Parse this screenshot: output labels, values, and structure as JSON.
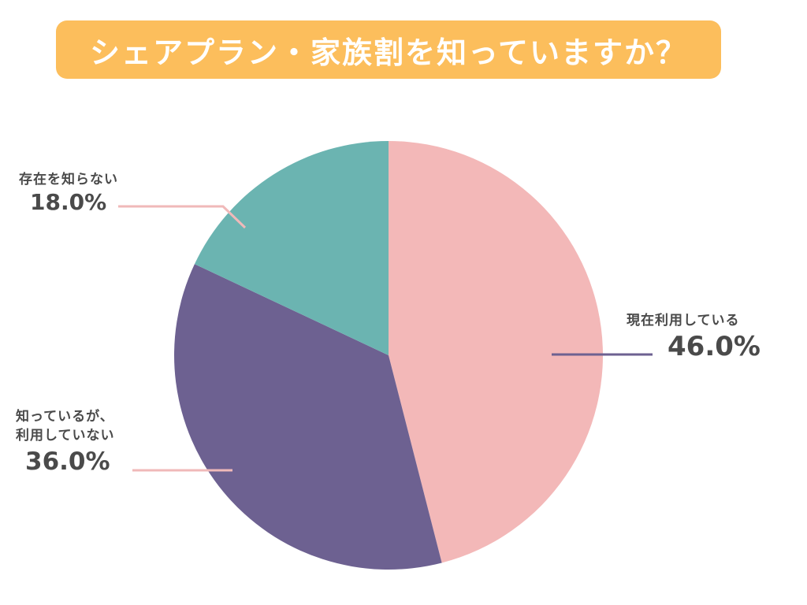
{
  "header": {
    "title": "シェアプラン・家族割を知っていますか？"
  },
  "colors": {
    "title_bg": "#fcbe5c",
    "title_text": "#ffffff",
    "slice_using": "#f3b8b8",
    "slice_not_using": "#6d6191",
    "slice_unknown": "#6bb4b1",
    "label_text": "#4a4a4a"
  },
  "chart_data": {
    "type": "pie",
    "title": "シェアプラン・家族割を知っていますか？",
    "slices": [
      {
        "label": "現在利用している",
        "value": 46.0,
        "display": "46.0%",
        "color": "#f3b8b8",
        "leader_color": "#6d6191"
      },
      {
        "label_lines": [
          "知っているが、",
          "利用していない"
        ],
        "value": 36.0,
        "display": "36.0%",
        "color": "#6d6191",
        "leader_color": "#f0b9b9"
      },
      {
        "label": "存在を知らない",
        "value": 18.0,
        "display": "18.0%",
        "color": "#6bb4b1",
        "leader_color": "#f0b9b9"
      }
    ],
    "start": "12 o'clock",
    "direction": "clockwise"
  }
}
